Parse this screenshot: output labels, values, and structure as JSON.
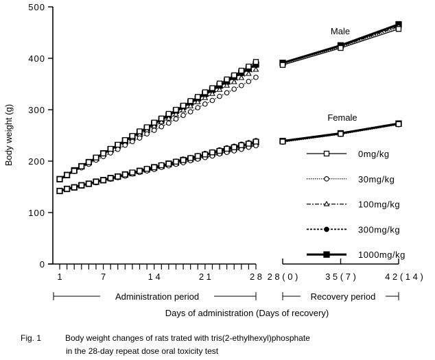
{
  "chart_data": {
    "type": "line",
    "title": "",
    "xlabel": "Days of administration (Days of recovery)",
    "ylabel": "Body weight (g)",
    "ylim": [
      0,
      500
    ],
    "yticks": [
      "0",
      "100",
      "200",
      "300",
      "400",
      "500"
    ],
    "grid": false,
    "admin_x": [
      1,
      2,
      3,
      4,
      5,
      6,
      7,
      8,
      9,
      10,
      11,
      12,
      13,
      14,
      15,
      16,
      17,
      18,
      19,
      20,
      21,
      22,
      23,
      24,
      25,
      26,
      27,
      28
    ],
    "admin_tick_labels": [
      {
        "day": 1,
        "label": "1"
      },
      {
        "day": 7,
        "label": "7"
      },
      {
        "day": 14,
        "label": "1 4"
      },
      {
        "day": 21,
        "label": "2 1"
      },
      {
        "day": 28,
        "label": "2 8"
      }
    ],
    "recovery_x": [
      28,
      35,
      42
    ],
    "recovery_tick_labels": [
      "2 8 ( 0 )",
      "3 5 ( 7 )",
      "4 2 ( 1 4 )"
    ],
    "period_labels": {
      "administration": "Administration period",
      "recovery": "Recovery period"
    },
    "group_labels": {
      "male": "Male",
      "female": "Female"
    },
    "legend_position": "right",
    "series": [
      {
        "name": "0mg/kg",
        "style": "solid-open-square",
        "sex": "male",
        "admin": [
          165,
          173,
          181,
          190,
          198,
          207,
          215,
          224,
          232,
          241,
          249,
          258,
          266,
          275,
          283,
          292,
          300,
          308,
          317,
          325,
          334,
          342,
          351,
          359,
          367,
          376,
          384,
          393
        ],
        "recovery": [
          387,
          420,
          457
        ]
      },
      {
        "name": "30mg/kg",
        "style": "dotted-open-circle",
        "sex": "male",
        "admin": [
          165,
          172,
          180,
          187,
          194,
          202,
          209,
          216,
          223,
          231,
          238,
          245,
          253,
          260,
          267,
          274,
          282,
          289,
          296,
          304,
          311,
          318,
          326,
          333,
          340,
          347,
          355,
          363
        ],
        "recovery": [
          389,
          422,
          460
        ]
      },
      {
        "name": "100mg/kg",
        "style": "dashdot-open-triangle",
        "sex": "male",
        "admin": [
          165,
          173,
          181,
          189,
          197,
          205,
          212,
          220,
          228,
          236,
          244,
          252,
          260,
          268,
          276,
          283,
          291,
          299,
          307,
          315,
          323,
          331,
          339,
          347,
          354,
          362,
          370,
          378
        ],
        "recovery": [
          390,
          423,
          462
        ]
      },
      {
        "name": "300mg/kg",
        "style": "dashed-filled-circle",
        "sex": "male",
        "admin": [
          165,
          173,
          181,
          190,
          198,
          206,
          214,
          222,
          231,
          239,
          247,
          255,
          263,
          272,
          280,
          288,
          296,
          304,
          313,
          321,
          329,
          337,
          345,
          354,
          362,
          370,
          378,
          386
        ],
        "recovery": [
          391,
          424,
          464
        ]
      },
      {
        "name": "1000mg/kg",
        "style": "thick-filled-square",
        "sex": "male",
        "admin": [
          165,
          173,
          182,
          190,
          198,
          206,
          215,
          223,
          231,
          240,
          248,
          256,
          264,
          273,
          281,
          289,
          298,
          306,
          314,
          322,
          331,
          339,
          347,
          355,
          364,
          372,
          380,
          388
        ],
        "recovery": [
          391,
          425,
          466
        ]
      },
      {
        "name": "0mg/kg",
        "style": "solid-open-square",
        "sex": "female",
        "admin": [
          142,
          146,
          149,
          153,
          156,
          160,
          163,
          167,
          170,
          174,
          178,
          181,
          185,
          188,
          192,
          195,
          199,
          202,
          206,
          210,
          213,
          217,
          220,
          224,
          227,
          231,
          234,
          238
        ],
        "recovery": [
          238,
          253,
          272
        ]
      },
      {
        "name": "30mg/kg",
        "style": "dotted-open-circle",
        "sex": "female",
        "admin": [
          142,
          145,
          149,
          152,
          155,
          158,
          162,
          165,
          168,
          171,
          175,
          178,
          181,
          184,
          188,
          191,
          194,
          197,
          201,
          204,
          207,
          210,
          214,
          217,
          220,
          223,
          227,
          230
        ],
        "recovery": [
          237,
          252,
          271
        ]
      },
      {
        "name": "100mg/kg",
        "style": "dashdot-open-triangle",
        "sex": "female",
        "admin": [
          142,
          145,
          149,
          152,
          155,
          159,
          162,
          165,
          169,
          172,
          175,
          179,
          182,
          185,
          189,
          192,
          195,
          199,
          202,
          205,
          209,
          212,
          215,
          219,
          222,
          225,
          229,
          232
        ],
        "recovery": [
          238,
          253,
          272
        ]
      },
      {
        "name": "300mg/kg",
        "style": "dashed-filled-circle",
        "sex": "female",
        "admin": [
          142,
          146,
          149,
          153,
          157,
          160,
          164,
          167,
          171,
          175,
          178,
          182,
          186,
          189,
          193,
          196,
          200,
          204,
          207,
          211,
          215,
          218,
          222,
          226,
          229,
          233,
          236,
          240
        ],
        "recovery": [
          239,
          254,
          273
        ]
      },
      {
        "name": "1000mg/kg",
        "style": "thick-filled-square",
        "sex": "female",
        "admin": [
          142,
          146,
          149,
          153,
          156,
          160,
          163,
          167,
          170,
          174,
          177,
          181,
          184,
          188,
          191,
          195,
          198,
          202,
          205,
          209,
          212,
          216,
          219,
          223,
          226,
          230,
          233,
          237
        ],
        "recovery": [
          239,
          254,
          273
        ]
      }
    ],
    "legend": [
      "0mg/kg",
      "30mg/kg",
      "100mg/kg",
      "300mg/kg",
      "1000mg/kg"
    ]
  },
  "caption": {
    "label": "Fig. 1",
    "line1": "Body weight changes of rats trated with tris(2-ethylhexyl)phosphate",
    "line2": "in the 28-day repeat dose oral toxicity test"
  }
}
